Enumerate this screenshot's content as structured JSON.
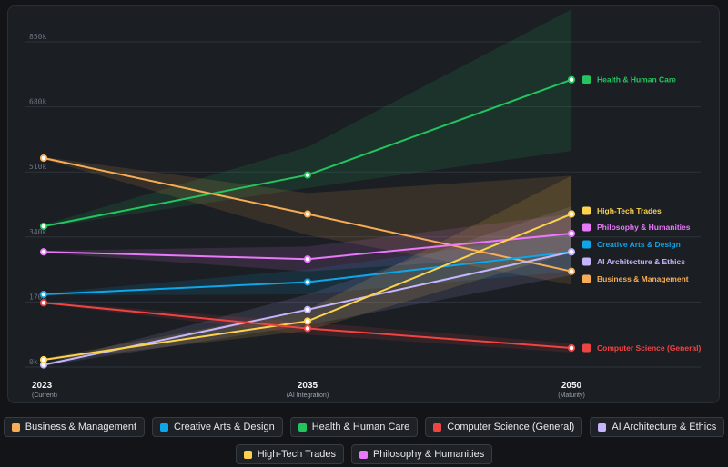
{
  "chart_data": {
    "type": "line",
    "title": "",
    "xlabel": "",
    "ylabel": "",
    "ylim": [
      0,
      850000
    ],
    "grid": true,
    "x_categories": [
      {
        "year": "2023",
        "label": "(Current)"
      },
      {
        "year": "2035",
        "label": "(AI Integration)"
      },
      {
        "year": "2050",
        "label": "(Maturity)"
      }
    ],
    "y_ticks": [
      {
        "value": 0,
        "label": "0k"
      },
      {
        "value": 170000,
        "label": "170k"
      },
      {
        "value": 340000,
        "label": "340k"
      },
      {
        "value": 510000,
        "label": "510k"
      },
      {
        "value": 680000,
        "label": "680k"
      },
      {
        "value": 850000,
        "label": "850k"
      }
    ],
    "series": [
      {
        "name": "Health & Human Care",
        "color": "#22c55e",
        "icon": "heart-pulse-icon",
        "values": [
          368000,
          502000,
          751000
        ],
        "band_low": [
          365000,
          468000,
          565000
        ],
        "band_high": [
          372000,
          575000,
          935000
        ]
      },
      {
        "name": "Business & Management",
        "color": "#f6ad55",
        "icon": "briefcase-icon",
        "values": [
          546000,
          400000,
          250000
        ],
        "band_low": [
          543000,
          345000,
          215000
        ],
        "band_high": [
          549000,
          455000,
          500000
        ]
      },
      {
        "name": "Philosophy & Humanities",
        "color": "#e879f9",
        "icon": "book-icon",
        "values": [
          301000,
          282000,
          349000
        ],
        "band_low": [
          298000,
          250000,
          295000
        ],
        "band_high": [
          304000,
          315000,
          400000
        ]
      },
      {
        "name": "Creative Arts & Design",
        "color": "#0ea5e9",
        "icon": "palette-icon",
        "values": [
          190000,
          222000,
          301000
        ],
        "band_low": [
          187000,
          190000,
          250000
        ],
        "band_high": [
          193000,
          255000,
          350000
        ]
      },
      {
        "name": "AI Architecture & Ethics",
        "color": "#c4b5fd",
        "icon": "brain-icon",
        "values": [
          6000,
          150000,
          301000
        ],
        "band_low": [
          3000,
          110000,
          240000
        ],
        "band_high": [
          9000,
          190000,
          420000
        ]
      },
      {
        "name": "High-Tech Trades",
        "color": "#fcd34d",
        "icon": "tools-icon",
        "values": [
          19000,
          120000,
          400000
        ],
        "band_low": [
          16000,
          95000,
          300000
        ],
        "band_high": [
          22000,
          150000,
          500000
        ]
      },
      {
        "name": "Computer Science (General)",
        "color": "#ef4444",
        "icon": "terminal-icon",
        "values": [
          168000,
          101000,
          50000
        ],
        "band_low": [
          165000,
          85000,
          38000
        ],
        "band_high": [
          171000,
          117000,
          62000
        ]
      }
    ],
    "end_labels_order": [
      "Health & Human Care",
      "High-Tech Trades",
      "Philosophy & Humanities",
      "Creative Arts & Design",
      "AI Architecture & Ethics",
      "Business & Management",
      "Computer Science (General)"
    ]
  },
  "legend": {
    "row1": [
      {
        "name": "Business & Management",
        "color": "#f6ad55"
      },
      {
        "name": "Creative Arts & Design",
        "color": "#0ea5e9"
      },
      {
        "name": "Health & Human Care",
        "color": "#22c55e"
      },
      {
        "name": "Computer Science (General)",
        "color": "#ef4444"
      },
      {
        "name": "AI Architecture & Ethics",
        "color": "#c4b5fd"
      }
    ],
    "row2": [
      {
        "name": "High-Tech Trades",
        "color": "#fcd34d"
      },
      {
        "name": "Philosophy & Humanities",
        "color": "#e879f9"
      }
    ]
  }
}
